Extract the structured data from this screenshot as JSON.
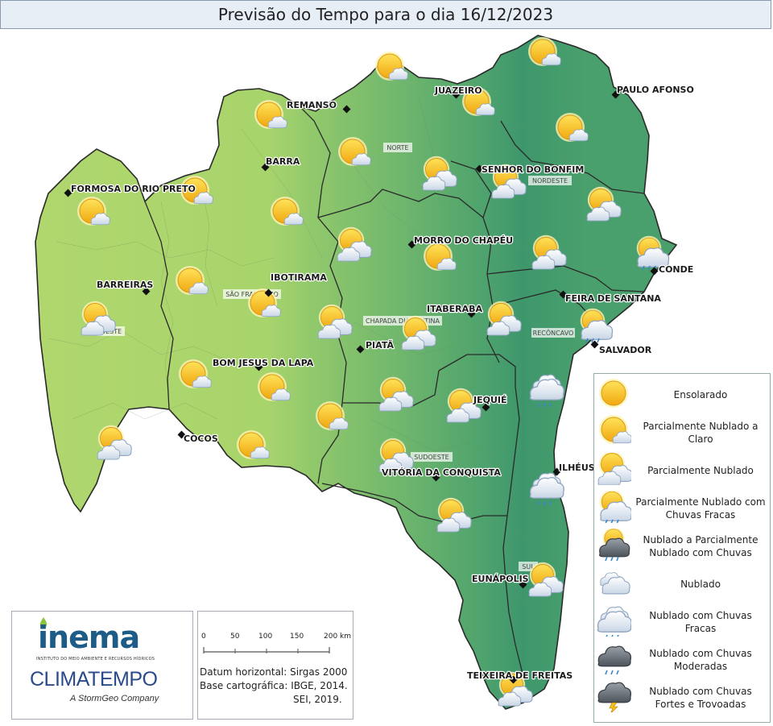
{
  "title": "Previsão do Tempo para o dia 16/12/2023",
  "colors": {
    "west": "#a9d36b",
    "east": "#3f9a6b",
    "border": "#2a2a2a",
    "sun": "#f6c21b"
  },
  "cities": [
    {
      "name": "REMANSO"
    },
    {
      "name": "JUAZEIRO"
    },
    {
      "name": "PAULO AFONSO"
    },
    {
      "name": "BARRA"
    },
    {
      "name": "SENHOR DO BONFIM"
    },
    {
      "name": "FORMOSA DO RIO PRETO"
    },
    {
      "name": "MORRO DO CHAPÉU"
    },
    {
      "name": "CONDE"
    },
    {
      "name": "BARREIRAS"
    },
    {
      "name": "IBOTIRAMA"
    },
    {
      "name": "FEIRA DE SANTANA"
    },
    {
      "name": "ITABERABA"
    },
    {
      "name": "SALVADOR"
    },
    {
      "name": "PIATÃ"
    },
    {
      "name": "BOM JESUS DA LAPA"
    },
    {
      "name": "JEQUIÉ"
    },
    {
      "name": "COCOS"
    },
    {
      "name": "VITÓRIA DA CONQUISTA"
    },
    {
      "name": "ILHÉUS"
    },
    {
      "name": "EUNÁPOLIS"
    },
    {
      "name": "TEIXEIRA DE FREITAS"
    }
  ],
  "regions": [
    "NORTE",
    "NORDESTE",
    "SÃO FRANCISCO",
    "OESTE",
    "CHAPADA DIAMANTINA",
    "RECÔNCAVO",
    "SUDOESTE",
    "SUL"
  ],
  "forecast_icons": [
    {
      "type": "partly-cloudy-clear"
    },
    {
      "type": "partly-cloudy-clear"
    },
    {
      "type": "partly-cloudy-clear"
    },
    {
      "type": "partly-cloudy-clear"
    },
    {
      "type": "partly-cloudy-clear"
    },
    {
      "type": "partly-cloudy-clear"
    },
    {
      "type": "partly-cloudy-clear"
    },
    {
      "type": "partly-cloudy"
    },
    {
      "type": "partly-cloudy"
    },
    {
      "type": "partly-cloudy-clear"
    },
    {
      "type": "partly-cloudy-clear"
    },
    {
      "type": "partly-cloudy-clear"
    },
    {
      "type": "partly-cloudy"
    },
    {
      "type": "partly-cloudy"
    },
    {
      "type": "partly-cloudy"
    },
    {
      "type": "partly-cloudy-light-rain"
    },
    {
      "type": "partly-cloudy-clear"
    },
    {
      "type": "partly-cloudy-clear"
    },
    {
      "type": "partly-cloudy"
    },
    {
      "type": "partly-cloudy"
    },
    {
      "type": "partly-cloudy"
    },
    {
      "type": "partly-cloudy"
    },
    {
      "type": "partly-cloudy-light-rain"
    },
    {
      "type": "partly-cloudy-clear"
    },
    {
      "type": "partly-cloudy-clear"
    },
    {
      "type": "partly-cloudy"
    },
    {
      "type": "partly-cloudy"
    },
    {
      "type": "cloudy-light-rain"
    },
    {
      "type": "partly-cloudy-clear"
    },
    {
      "type": "partly-cloudy"
    },
    {
      "type": "partly-cloudy-clear"
    },
    {
      "type": "partly-cloudy"
    },
    {
      "type": "partly-cloudy"
    },
    {
      "type": "cloudy-light-rain"
    },
    {
      "type": "partly-cloudy"
    },
    {
      "type": "partly-cloudy"
    },
    {
      "type": "partly-cloudy"
    }
  ],
  "legend": [
    {
      "icon": "sunny-icon",
      "label": "Ensolarado"
    },
    {
      "icon": "partly-cloudy-clear-icon",
      "label": "Parcialmente Nublado a Claro"
    },
    {
      "icon": "partly-cloudy-icon",
      "label": "Parcialmente Nublado"
    },
    {
      "icon": "partly-cloudy-light-rain-icon",
      "label": "Parcialmente Nublado com Chuvas Fracas"
    },
    {
      "icon": "cloudy-partly-rain-icon",
      "label": "Nublado a Parcialmente Nublado com Chuvas"
    },
    {
      "icon": "cloudy-icon",
      "label": "Nublado"
    },
    {
      "icon": "cloudy-light-rain-icon",
      "label": "Nublado com Chuvas Fracas"
    },
    {
      "icon": "cloudy-moderate-rain-icon",
      "label": "Nublado com Chuvas Moderadas"
    },
    {
      "icon": "thunderstorm-icon",
      "label": "Nublado com Chuvas Fortes e Trovoadas"
    }
  ],
  "logos": {
    "inema": "inema",
    "inema_sub": "INSTITUTO DO MEIO AMBIENTE E RECURSOS HÍDRICOS",
    "climatempo": "CLIMATEMPO",
    "stormgeo": "A StormGeo Company"
  },
  "scale": {
    "ticks": [
      "0",
      "50",
      "100",
      "150",
      "200 km"
    ],
    "datum": "Datum horizontal: Sirgas 2000",
    "base": "Base cartográfica: IBGE, 2014.",
    "sei": "SEI, 2019."
  }
}
